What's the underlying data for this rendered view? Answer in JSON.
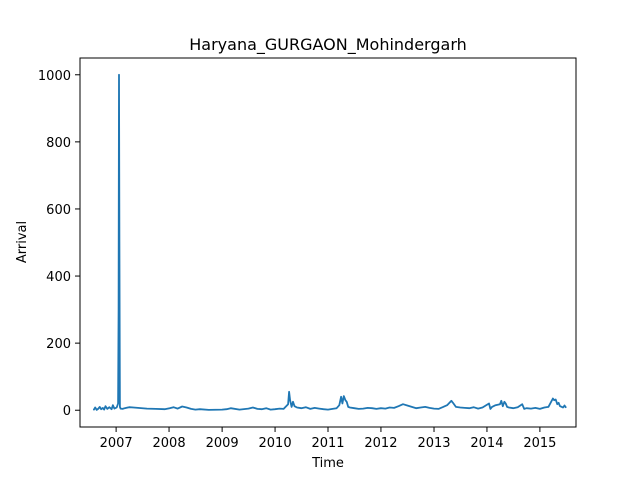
{
  "chart_data": {
    "type": "line",
    "title": "Haryana_GURGAON_Mohindergarh",
    "xlabel": "Time",
    "ylabel": "Arrival",
    "x_ticks": [
      "2007",
      "2008",
      "2009",
      "2010",
      "2011",
      "2012",
      "2013",
      "2014",
      "2015"
    ],
    "y_ticks": [
      "0",
      "200",
      "400",
      "600",
      "800",
      "1000"
    ],
    "xlim": [
      "2006-04-27",
      "2015-09-07"
    ],
    "ylim": [
      -50,
      1050
    ],
    "grid": false,
    "colors": {
      "series": "#1f77b4"
    },
    "series": [
      {
        "x": [
          "2006-08-01",
          "2006-08-10",
          "2006-08-20",
          "2006-09-01",
          "2006-09-10",
          "2006-09-20",
          "2006-10-01",
          "2006-10-10",
          "2006-10-20",
          "2006-11-01",
          "2006-11-15",
          "2006-12-01",
          "2006-12-10",
          "2006-12-20",
          "2007-01-05",
          "2007-01-15",
          "2007-01-18",
          "2007-01-21",
          "2007-01-24",
          "2007-01-27",
          "2007-02-01",
          "2007-02-15",
          "2007-03-01",
          "2007-04-01",
          "2007-05-01",
          "2007-06-01",
          "2007-08-01",
          "2007-10-01",
          "2007-12-01",
          "2008-01-05",
          "2008-02-01",
          "2008-03-01",
          "2008-04-01",
          "2008-05-01",
          "2008-06-01",
          "2008-07-01",
          "2008-08-01",
          "2008-10-01",
          "2009-01-01",
          "2009-02-01",
          "2009-03-01",
          "2009-05-01",
          "2009-07-01",
          "2009-08-01",
          "2009-09-01",
          "2009-10-01",
          "2009-11-01",
          "2009-12-01",
          "2010-01-01",
          "2010-02-01",
          "2010-03-01",
          "2010-04-01",
          "2010-04-08",
          "2010-04-15",
          "2010-04-25",
          "2010-05-05",
          "2010-05-15",
          "2010-06-01",
          "2010-07-01",
          "2010-08-01",
          "2010-09-01",
          "2010-10-01",
          "2010-11-01",
          "2010-12-01",
          "2011-01-01",
          "2011-02-01",
          "2011-03-01",
          "2011-03-20",
          "2011-04-01",
          "2011-04-10",
          "2011-04-20",
          "2011-05-01",
          "2011-05-10",
          "2011-05-20",
          "2011-06-01",
          "2011-07-01",
          "2011-08-01",
          "2011-09-01",
          "2011-10-01",
          "2011-11-01",
          "2011-12-01",
          "2012-01-01",
          "2012-02-01",
          "2012-03-01",
          "2012-04-01",
          "2012-05-01",
          "2012-06-01",
          "2012-07-01",
          "2012-08-01",
          "2012-09-01",
          "2012-10-01",
          "2012-11-01",
          "2012-12-01",
          "2013-01-01",
          "2013-02-01",
          "2013-03-01",
          "2013-04-01",
          "2013-05-01",
          "2013-05-15",
          "2013-06-01",
          "2013-07-01",
          "2013-08-01",
          "2013-09-01",
          "2013-10-01",
          "2013-11-01",
          "2013-12-01",
          "2014-01-15",
          "2014-01-25",
          "2014-02-05",
          "2014-03-01",
          "2014-04-01",
          "2014-04-10",
          "2014-04-20",
          "2014-05-01",
          "2014-05-10",
          "2014-05-20",
          "2014-06-01",
          "2014-07-01",
          "2014-08-01",
          "2014-09-01",
          "2014-09-15",
          "2014-10-01",
          "2014-11-01",
          "2014-12-01",
          "2015-01-01",
          "2015-02-01",
          "2015-03-01",
          "2015-04-01",
          "2015-04-10",
          "2015-04-20",
          "2015-05-01",
          "2015-05-10",
          "2015-05-20",
          "2015-06-01",
          "2015-06-10",
          "2015-06-20",
          "2015-06-28"
        ],
        "y": [
          2,
          8,
          1,
          5,
          10,
          3,
          7,
          2,
          12,
          4,
          9,
          3,
          15,
          5,
          8,
          20,
          300,
          1000,
          500,
          10,
          5,
          4,
          6,
          9,
          8,
          7,
          5,
          4,
          3,
          6,
          9,
          5,
          11,
          8,
          4,
          2,
          3,
          1,
          2,
          3,
          6,
          2,
          5,
          8,
          4,
          3,
          6,
          2,
          3,
          5,
          4,
          18,
          55,
          30,
          10,
          25,
          12,
          8,
          6,
          9,
          4,
          7,
          5,
          3,
          2,
          4,
          6,
          15,
          40,
          20,
          42,
          30,
          25,
          10,
          8,
          6,
          4,
          5,
          7,
          6,
          4,
          6,
          5,
          8,
          7,
          12,
          18,
          14,
          10,
          6,
          8,
          10,
          7,
          5,
          4,
          9,
          15,
          28,
          20,
          10,
          8,
          7,
          6,
          9,
          5,
          8,
          20,
          4,
          10,
          15,
          18,
          28,
          12,
          25,
          20,
          10,
          8,
          6,
          9,
          18,
          4,
          6,
          5,
          7,
          4,
          8,
          10,
          35,
          30,
          32,
          18,
          22,
          12,
          10,
          8,
          14,
          9
        ]
      }
    ]
  }
}
